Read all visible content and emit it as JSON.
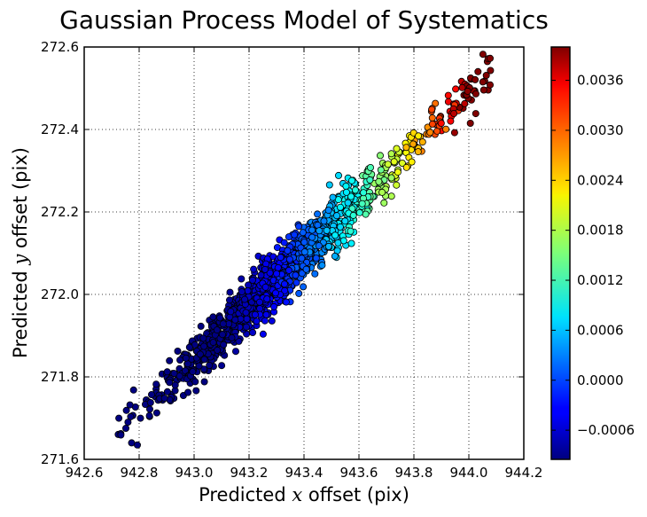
{
  "chart_data": {
    "type": "scatter",
    "title": "Gaussian Process Model of Systematics",
    "xlabel_prefix": "Predicted ",
    "xlabel_var": "x",
    "xlabel_suffix": " offset (pix)",
    "ylabel_prefix": "Predicted ",
    "ylabel_var": "y",
    "ylabel_suffix": " offset (pix)",
    "xlim": [
      942.6,
      944.2
    ],
    "ylim": [
      271.6,
      272.6
    ],
    "grid": true,
    "xticks": [
      942.6,
      942.8,
      943.0,
      943.2,
      943.4,
      943.6,
      943.8,
      944.0,
      944.2
    ],
    "xtick_labels": [
      "942.6",
      "942.8",
      "943.0",
      "943.2",
      "943.4",
      "943.6",
      "943.8",
      "944.0",
      "944.2"
    ],
    "yticks": [
      271.6,
      271.8,
      272.0,
      272.2,
      272.4,
      272.6
    ],
    "ytick_labels": [
      "271.6",
      "271.8",
      "272.0",
      "272.2",
      "272.4",
      "272.6"
    ],
    "colormap": "jet",
    "colorbar": {
      "vmin": -0.00095,
      "vmax": 0.004,
      "ticks": [
        -0.0006,
        0.0,
        0.0006,
        0.0012,
        0.0018,
        0.0024,
        0.003,
        0.0036
      ],
      "tick_labels": [
        "−0.0006",
        "0.0000",
        "0.0006",
        "0.0012",
        "0.0018",
        "0.0024",
        "0.0030",
        "0.0036"
      ]
    },
    "point_count": 1500,
    "trend": {
      "x_range": [
        942.72,
        944.08
      ],
      "y_at_x_start": 271.66,
      "y_at_x_end": 272.54
    }
  }
}
